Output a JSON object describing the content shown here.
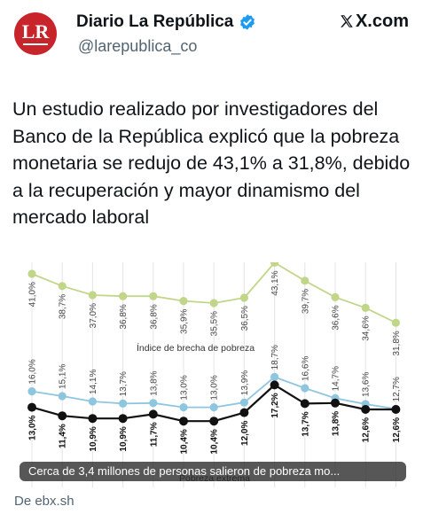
{
  "account": {
    "name": "Diario La República",
    "handle": "@larepublica_co",
    "avatar_text": "LR",
    "source": "X.com"
  },
  "tweet": {
    "text": "Un estudio realizado por investigadores del Banco de la República explicó que la pobreza monetaria se redujo de 43,1% a 31,8%, debido a la recuperación y mayor dinamismo del mercado laboral"
  },
  "card": {
    "caption": "Cerca de 3,4 millones de personas salieron de pobreza mo...",
    "footer": "De ebx.sh"
  },
  "chart_data": {
    "type": "line",
    "annotations": [
      "Índice de brecha de pobreza",
      "Pobreza extrema"
    ],
    "series": [
      {
        "key": "monetaria",
        "color": "#c2d68a",
        "values": [
          41.0,
          38.7,
          37.0,
          36.8,
          36.8,
          35.9,
          35.5,
          36.5,
          43.1,
          39.7,
          36.6,
          34.6,
          31.8
        ],
        "labels": [
          "41,0%",
          "38,7%",
          "37,0%",
          "36,8%",
          "36,8%",
          "35,9%",
          "35,5%",
          "36,5%",
          "43,1%",
          "39,7%",
          "36,6%",
          "34,6%",
          "31,8%"
        ]
      },
      {
        "key": "brecha",
        "color": "#8ec6e0",
        "values": [
          16.0,
          15.1,
          14.1,
          13.7,
          13.8,
          13.0,
          13.0,
          13.9,
          18.7,
          16.6,
          14.7,
          13.6,
          12.7
        ],
        "labels": [
          "16,0%",
          "15,1%",
          "14,1%",
          "13,7%",
          "13,8%",
          "13,0%",
          "13,0%",
          "13,9%",
          "18,7%",
          "16,6%",
          "14,7%",
          "13,6%",
          "12,7%"
        ]
      },
      {
        "key": "extrema",
        "color": "#111111",
        "values": [
          13.0,
          11.4,
          10.9,
          10.9,
          11.7,
          10.4,
          10.4,
          12.0,
          17.2,
          13.7,
          13.8,
          12.6,
          12.6
        ],
        "labels": [
          "13,0%",
          "11,4%",
          "10,9%",
          "10,9%",
          "11,7%",
          "10,4%",
          "10,4%",
          "12,0%",
          "17,2%",
          "13,7%",
          "13,8%",
          "12,6%",
          "12,6%"
        ]
      }
    ]
  }
}
